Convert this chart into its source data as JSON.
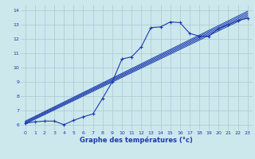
{
  "bg_color": "#cde8ec",
  "line_color": "#1a3aad",
  "grid_color": "#aac8d0",
  "xlabel": "Graphe des températures (°c)",
  "xlim": [
    -0.5,
    23.5
  ],
  "ylim": [
    5.6,
    14.4
  ],
  "yticks": [
    6,
    7,
    8,
    9,
    10,
    11,
    12,
    13,
    14
  ],
  "xticks": [
    0,
    1,
    2,
    3,
    4,
    5,
    6,
    7,
    8,
    9,
    10,
    11,
    12,
    13,
    14,
    15,
    16,
    17,
    18,
    19,
    20,
    21,
    22,
    23
  ],
  "main_line": [
    [
      0,
      6.1
    ],
    [
      1,
      6.2
    ],
    [
      2,
      6.25
    ],
    [
      3,
      6.25
    ],
    [
      4,
      6.0
    ],
    [
      5,
      6.3
    ],
    [
      6,
      6.55
    ],
    [
      7,
      6.75
    ],
    [
      8,
      7.85
    ],
    [
      9,
      9.0
    ],
    [
      10,
      10.6
    ],
    [
      11,
      10.75
    ],
    [
      12,
      11.45
    ],
    [
      13,
      12.8
    ],
    [
      14,
      12.85
    ],
    [
      15,
      13.2
    ],
    [
      16,
      13.15
    ],
    [
      17,
      12.4
    ],
    [
      18,
      12.2
    ],
    [
      19,
      12.2
    ],
    [
      20,
      12.75
    ],
    [
      21,
      13.0
    ],
    [
      22,
      13.3
    ],
    [
      23,
      13.45
    ]
  ],
  "ref_lines": [
    [
      [
        0,
        6.05
      ],
      [
        23,
        13.55
      ]
    ],
    [
      [
        0,
        6.1
      ],
      [
        23,
        13.65
      ]
    ],
    [
      [
        0,
        6.15
      ],
      [
        23,
        13.75
      ]
    ],
    [
      [
        0,
        6.2
      ],
      [
        23,
        13.85
      ]
    ],
    [
      [
        0,
        6.25
      ],
      [
        23,
        13.95
      ]
    ]
  ]
}
